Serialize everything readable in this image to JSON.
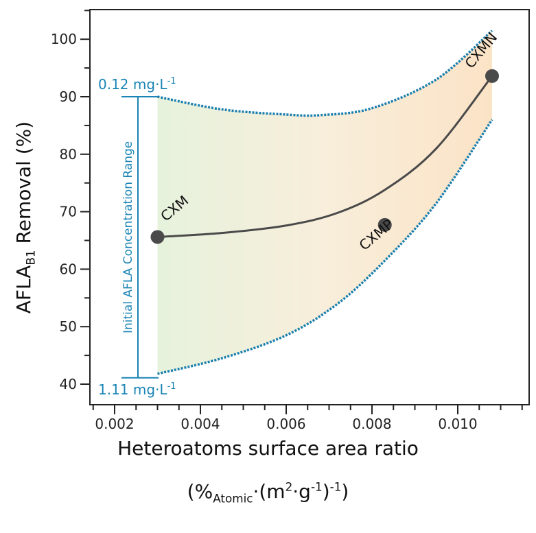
{
  "chart_data": {
    "type": "scatter",
    "title": "",
    "xlabel": "Heteroatoms surface area ratio",
    "xlabel_units": {
      "pre": "(%",
      "sub": "Atomic",
      "mid": "·(m",
      "sup1": "2",
      "mid2": "·g",
      "sup2": "-1",
      "mid3": ")",
      "sup3": "-1",
      "post": ")"
    },
    "ylabel": {
      "main": "AFLA",
      "sub": "B1",
      "rest": " Removal (%)"
    },
    "xlim": [
      0.0015,
      0.0115
    ],
    "ylim": [
      37,
      105
    ],
    "x_ticks": [
      0.002,
      0.004,
      0.006,
      0.008,
      0.01
    ],
    "x_tick_labels": [
      "0.002",
      "0.004",
      "0.006",
      "0.008",
      "0.010"
    ],
    "y_ticks": [
      40,
      50,
      60,
      70,
      80,
      90,
      100
    ],
    "y_tick_labels": [
      "40",
      "50",
      "60",
      "70",
      "80",
      "90",
      "100"
    ],
    "points": [
      {
        "label": "CXM",
        "x": 0.003,
        "y": 65.6
      },
      {
        "label": "CXMP",
        "x": 0.0083,
        "y": 67.7
      },
      {
        "label": "CXMN",
        "x": 0.0108,
        "y": 93.6
      }
    ],
    "fit_curve": {
      "x": [
        0.003,
        0.0045,
        0.006,
        0.0072,
        0.0083,
        0.0095,
        0.0108
      ],
      "y": [
        65.6,
        66.3,
        67.6,
        69.8,
        73.8,
        81.0,
        93.6
      ]
    },
    "upper_band": {
      "x": [
        0.003,
        0.0045,
        0.006,
        0.0068,
        0.008,
        0.0095,
        0.0108
      ],
      "y": [
        90.0,
        87.8,
        86.9,
        86.8,
        88.0,
        93.0,
        101.5
      ]
    },
    "lower_band": {
      "x": [
        0.003,
        0.0045,
        0.006,
        0.0072,
        0.0083,
        0.0095,
        0.0108
      ],
      "y": [
        41.8,
        44.5,
        48.5,
        54.0,
        61.5,
        71.5,
        86.0
      ]
    },
    "range_bar": {
      "x": 0.0025,
      "y_top": 90,
      "y_bottom": 41.1,
      "top_label": "0.12 mg·L",
      "bottom_label": "1.11 mg·L",
      "exp": "-1",
      "side_label": "Initial AFLA Concentration Range"
    },
    "colors": {
      "points": "#4a4a4a",
      "band": "#1a7fae",
      "range": "#1a84b5"
    }
  }
}
